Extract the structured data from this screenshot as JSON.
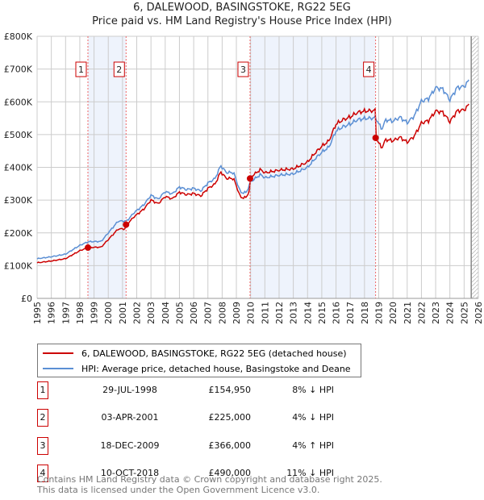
{
  "chart_data": {
    "type": "line",
    "title": "6, DALEWOOD, BASINGSTOKE, RG22 5EG",
    "subtitle": "Price paid vs. HM Land Registry's House Price Index (HPI)",
    "xlim": [
      1995,
      2026
    ],
    "ylim": [
      0,
      800000
    ],
    "yticks": [
      0,
      100000,
      200000,
      300000,
      400000,
      500000,
      600000,
      700000,
      800000
    ],
    "ytick_labels": [
      "£0",
      "£100K",
      "£200K",
      "£300K",
      "£400K",
      "£500K",
      "£600K",
      "£700K",
      "£800K"
    ],
    "xticks": [
      1995,
      1996,
      1997,
      1998,
      1999,
      2000,
      2001,
      2002,
      2003,
      2004,
      2005,
      2006,
      2007,
      2008,
      2009,
      2010,
      2011,
      2012,
      2013,
      2014,
      2015,
      2016,
      2017,
      2018,
      2019,
      2020,
      2021,
      2022,
      2023,
      2024,
      2025,
      2026
    ],
    "grid": true,
    "forecast_from": 2025.5,
    "colors": {
      "property": "#cc0000",
      "hpi": "#5b8fd4",
      "shade": "#eef3fc"
    },
    "hpi_series": {
      "name": "HPI: Average price, detached house, Basingstoke and Deane",
      "x": [
        1995,
        1996,
        1997,
        1998,
        1998.6,
        1999.5,
        2000,
        2000.7,
        2001.3,
        2001.8,
        2002.5,
        2003,
        2003.5,
        2004,
        2004.5,
        2005,
        2005.5,
        2006,
        2006.5,
        2007,
        2007.5,
        2007.9,
        2008.3,
        2008.8,
        2009.3,
        2009.7,
        2010,
        2010.7,
        2011,
        2012,
        2013,
        2014,
        2014.5,
        2015,
        2015.5,
        2016,
        2016.5,
        2017,
        2017.5,
        2018,
        2018.8,
        2019.2,
        2019.5,
        2020,
        2020.5,
        2021,
        2021.5,
        2022,
        2022.5,
        2023,
        2023.5,
        2024,
        2024.5,
        2025,
        2025.4
      ],
      "y": [
        121000,
        127000,
        135000,
        162000,
        173000,
        174000,
        200000,
        236000,
        236000,
        261000,
        286000,
        315000,
        303000,
        326000,
        319000,
        340000,
        332000,
        336000,
        328000,
        352000,
        366000,
        405000,
        384000,
        384000,
        323000,
        323000,
        356000,
        378000,
        368000,
        376000,
        380000,
        400000,
        425000,
        446000,
        462000,
        511000,
        524000,
        532000,
        545000,
        549000,
        551000,
        516000,
        545000,
        541000,
        553000,
        536000,
        557000,
        602000,
        610000,
        643000,
        639000,
        606000,
        643000,
        647000,
        668000
      ]
    },
    "property_series": {
      "name": "6, DALEWOOD, BASINGSTOKE, RG22 5EG (detached house)",
      "derivation": "indexed from each sale by HPI"
    },
    "sales": [
      {
        "label": "1",
        "date": "29-JUL-1998",
        "t": 1998.57,
        "price": 154950,
        "price_label": "£154,950",
        "hpi": "8% ↓ HPI"
      },
      {
        "label": "2",
        "date": "03-APR-2001",
        "t": 2001.25,
        "price": 225000,
        "price_label": "£225,000",
        "hpi": "4% ↓ HPI"
      },
      {
        "label": "3",
        "date": "18-DEC-2009",
        "t": 2009.96,
        "price": 366000,
        "price_label": "£366,000",
        "hpi": "4% ↑ HPI"
      },
      {
        "label": "4",
        "date": "10-OCT-2018",
        "t": 2018.78,
        "price": 490000,
        "price_label": "£490,000",
        "hpi": "11% ↓ HPI"
      }
    ]
  },
  "legend": {
    "property": "6, DALEWOOD, BASINGSTOKE, RG22 5EG (detached house)",
    "hpi": "HPI: Average price, detached house, Basingstoke and Deane"
  },
  "footer": {
    "line1": "Contains HM Land Registry data © Crown copyright and database right 2025.",
    "line2": "This data is licensed under the Open Government Licence v3.0."
  }
}
